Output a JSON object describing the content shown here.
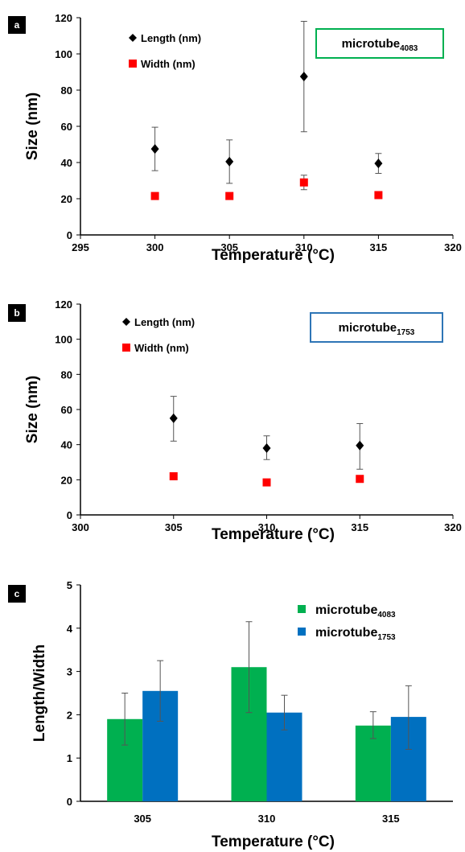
{
  "chart_data": [
    {
      "type": "scatter",
      "panel_label": "a",
      "xlabel": "Temperature (°C)",
      "ylabel": "Size (nm)",
      "xlim": [
        295,
        320
      ],
      "ylim": [
        0,
        120
      ],
      "xticks": [
        295,
        300,
        305,
        310,
        315,
        320
      ],
      "yticks": [
        0,
        20,
        40,
        60,
        80,
        100,
        120
      ],
      "grid": false,
      "legend_position": "top-left",
      "box_label": {
        "main": "microtube",
        "sub": "4083",
        "color": "#00b050"
      },
      "series": [
        {
          "name": "Length (nm)",
          "marker": "diamond",
          "color": "#000000",
          "points": [
            {
              "x": 300,
              "y": 47.5,
              "err_low": 35.5,
              "err_high": 59.5
            },
            {
              "x": 305,
              "y": 40.5,
              "err_low": 28.5,
              "err_high": 52.5
            },
            {
              "x": 310,
              "y": 87.5,
              "err_low": 57,
              "err_high": 118
            },
            {
              "x": 315,
              "y": 39.5,
              "err_low": 34,
              "err_high": 45
            }
          ]
        },
        {
          "name": "Width (nm)",
          "marker": "square",
          "color": "#ff0000",
          "points": [
            {
              "x": 300,
              "y": 21.5,
              "err_low": 20,
              "err_high": 23
            },
            {
              "x": 305,
              "y": 21.5,
              "err_low": 20,
              "err_high": 23
            },
            {
              "x": 310,
              "y": 29,
              "err_low": 25,
              "err_high": 33
            },
            {
              "x": 315,
              "y": 22,
              "err_low": 21,
              "err_high": 23
            }
          ]
        }
      ]
    },
    {
      "type": "scatter",
      "panel_label": "b",
      "xlabel": "Temperature (°C)",
      "ylabel": "Size (nm)",
      "xlim": [
        300,
        320
      ],
      "ylim": [
        0,
        120
      ],
      "xticks": [
        300,
        305,
        310,
        315,
        320
      ],
      "yticks": [
        0,
        20,
        40,
        60,
        80,
        100,
        120
      ],
      "grid": false,
      "legend_position": "top-left",
      "box_label": {
        "main": "microtube",
        "sub": "1753",
        "color": "#2e75b6"
      },
      "series": [
        {
          "name": "Length (nm)",
          "marker": "diamond",
          "color": "#000000",
          "points": [
            {
              "x": 305,
              "y": 55,
              "err_low": 42,
              "err_high": 67.5
            },
            {
              "x": 310,
              "y": 38,
              "err_low": 31.5,
              "err_high": 45
            },
            {
              "x": 315,
              "y": 39.5,
              "err_low": 26,
              "err_high": 52
            }
          ]
        },
        {
          "name": "Width (nm)",
          "marker": "square",
          "color": "#ff0000",
          "points": [
            {
              "x": 305,
              "y": 22,
              "err_low": 20,
              "err_high": 24
            },
            {
              "x": 310,
              "y": 18.5,
              "err_low": 18,
              "err_high": 19
            },
            {
              "x": 315,
              "y": 20.5,
              "err_low": 19,
              "err_high": 22
            }
          ]
        }
      ]
    },
    {
      "type": "bar",
      "panel_label": "c",
      "xlabel": "Temperature (°C)",
      "ylabel": "Length/Width",
      "categories": [
        "305",
        "310",
        "315"
      ],
      "ylim": [
        0,
        5
      ],
      "yticks": [
        0,
        1,
        2,
        3,
        4,
        5
      ],
      "grid": false,
      "legend_position": "top-right",
      "series": [
        {
          "name": "microtube",
          "sub": "4083",
          "color": "#00b050",
          "values": [
            1.9,
            3.1,
            1.75
          ],
          "err_low": [
            1.3,
            2.05,
            1.45
          ],
          "err_high": [
            2.5,
            4.15,
            2.07
          ]
        },
        {
          "name": "microtube",
          "sub": "1753",
          "color": "#0070c0",
          "values": [
            2.55,
            2.05,
            1.95
          ],
          "err_low": [
            1.85,
            1.65,
            1.2
          ],
          "err_high": [
            3.25,
            2.45,
            2.67
          ]
        }
      ]
    }
  ]
}
